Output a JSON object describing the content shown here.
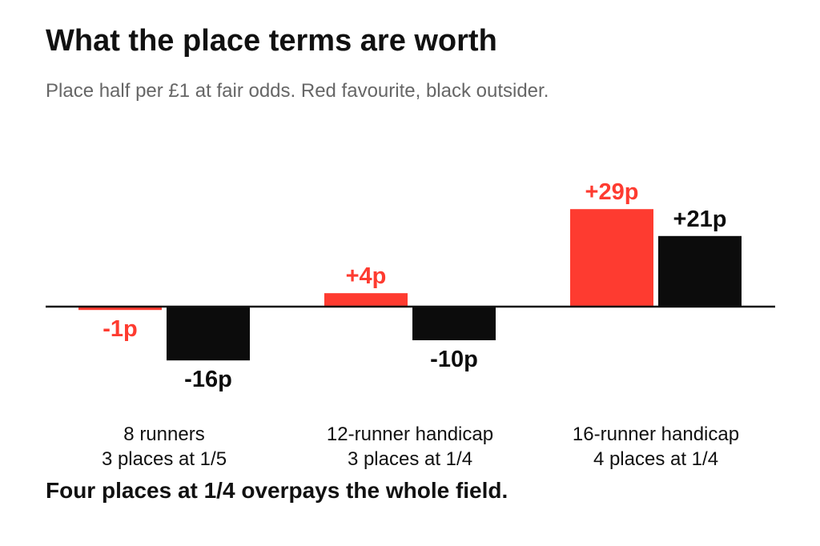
{
  "title": "What the place terms are worth",
  "subtitle": "Place half per £1 at fair odds. Red favourite, black outsider.",
  "footer": "Four places at 1/4 overpays the whole field.",
  "colors": {
    "favourite": "#fe3b30",
    "outsider": "#0c0c0c",
    "axis": "#111111"
  },
  "chart_data": {
    "type": "bar",
    "categories": [
      {
        "line1": "8 runners",
        "line2": "3 places at 1/5"
      },
      {
        "line1": "12-runner handicap",
        "line2": "3 places at 1/4"
      },
      {
        "line1": "16-runner handicap",
        "line2": "4 places at 1/4"
      }
    ],
    "series": [
      {
        "values": [
          -1,
          4,
          29
        ],
        "labels": [
          "-1p",
          "+4p",
          "+29p"
        ],
        "color": "#fe3b30"
      },
      {
        "values": [
          -16,
          -10,
          21
        ],
        "labels": [
          "-16p",
          "-10p",
          "+21p"
        ],
        "color": "#0c0c0c"
      }
    ],
    "unit": "p",
    "grid": false,
    "legend": "none"
  }
}
